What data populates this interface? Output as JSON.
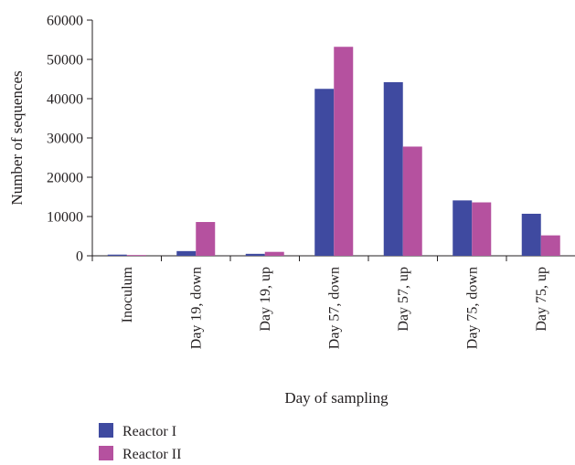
{
  "chart_data": {
    "type": "bar",
    "xlabel": "Day of sampling",
    "ylabel": "Number of sequences",
    "ylim": [
      0,
      60000
    ],
    "yticks": [
      0,
      10000,
      20000,
      30000,
      40000,
      50000,
      60000
    ],
    "categories": [
      "Inoculum",
      "Day 19, down",
      "Day 19, up",
      "Day 57, down",
      "Day 57, up",
      "Day 75, down",
      "Day 75, up"
    ],
    "series": [
      {
        "name": "Reactor I",
        "color": "#3f4aa0",
        "values": [
          300,
          1200,
          500,
          42500,
          44200,
          14100,
          10700
        ]
      },
      {
        "name": "Reactor II",
        "color": "#b5519f",
        "values": [
          200,
          8600,
          1000,
          53200,
          27800,
          13600,
          5200
        ]
      }
    ],
    "grid": false,
    "legend_position": "bottom-left"
  }
}
